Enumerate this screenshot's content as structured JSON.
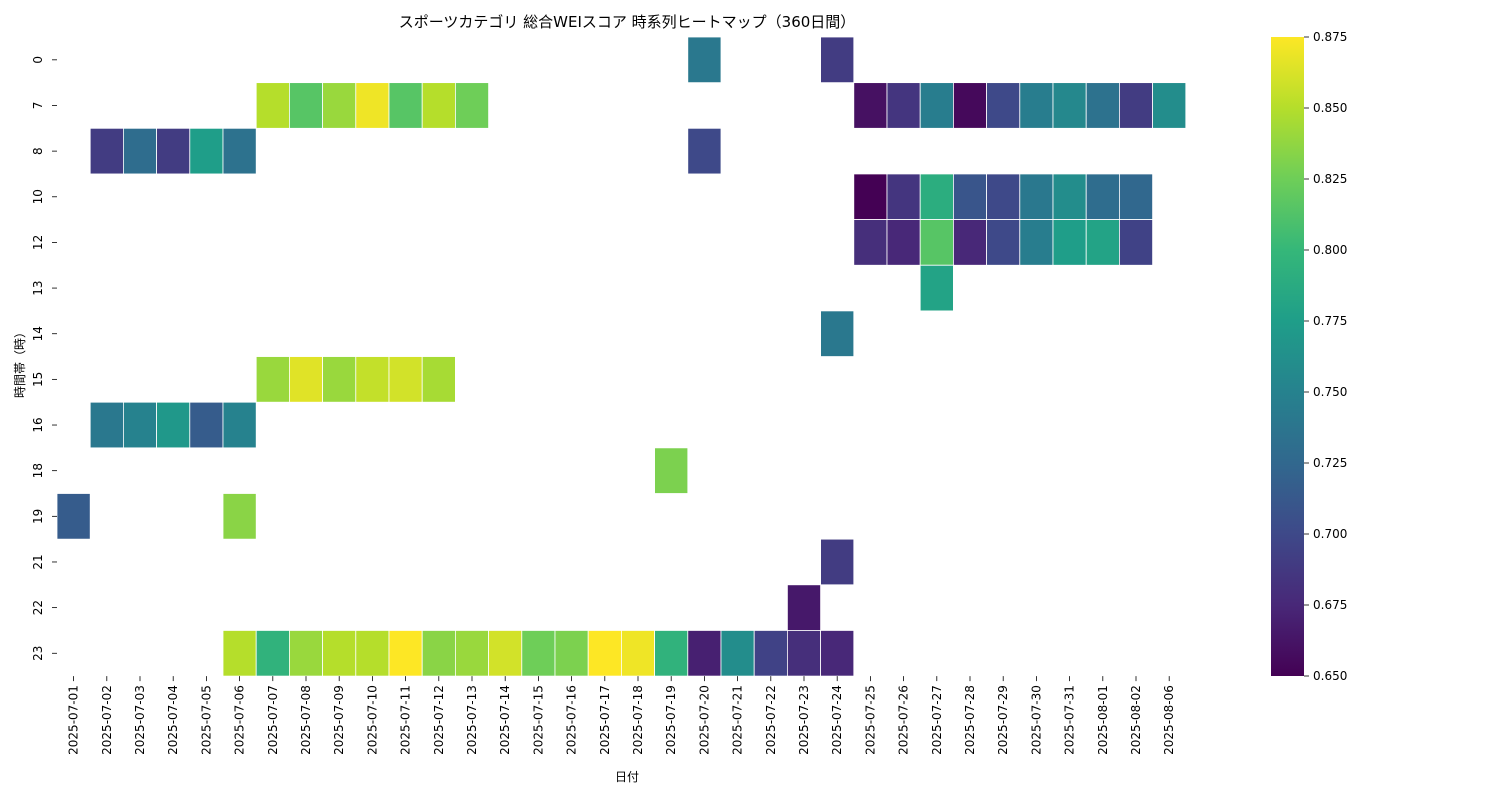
{
  "chart_data": {
    "type": "heatmap",
    "title": "スポーツカテゴリ 総合WEIスコア 時系列ヒートマップ（360日間）",
    "xlabel": "日付",
    "ylabel": "時間帯（時）",
    "x_categories": [
      "2025-07-01",
      "2025-07-02",
      "2025-07-03",
      "2025-07-04",
      "2025-07-05",
      "2025-07-06",
      "2025-07-07",
      "2025-07-08",
      "2025-07-09",
      "2025-07-10",
      "2025-07-11",
      "2025-07-12",
      "2025-07-13",
      "2025-07-14",
      "2025-07-15",
      "2025-07-16",
      "2025-07-17",
      "2025-07-18",
      "2025-07-19",
      "2025-07-20",
      "2025-07-21",
      "2025-07-22",
      "2025-07-23",
      "2025-07-24",
      "2025-07-25",
      "2025-07-26",
      "2025-07-27",
      "2025-07-28",
      "2025-07-29",
      "2025-07-30",
      "2025-07-31",
      "2025-08-01",
      "2025-08-02",
      "2025-08-06"
    ],
    "y_categories": [
      "0",
      "7",
      "8",
      "10",
      "12",
      "13",
      "14",
      "15",
      "16",
      "18",
      "19",
      "21",
      "22",
      "23"
    ],
    "colorbar": {
      "colormap": "viridis",
      "range": [
        0.65,
        0.875
      ],
      "ticks": [
        "0.650",
        "0.675",
        "0.700",
        "0.725",
        "0.750",
        "0.775",
        "0.800",
        "0.825",
        "0.850",
        "0.875"
      ]
    },
    "values": [
      [
        null,
        null,
        null,
        null,
        null,
        null,
        null,
        null,
        null,
        null,
        null,
        null,
        null,
        null,
        null,
        null,
        null,
        null,
        null,
        0.74,
        null,
        null,
        null,
        0.69,
        null,
        null,
        null,
        null,
        null,
        null,
        null,
        null,
        null,
        null
      ],
      [
        null,
        null,
        null,
        null,
        null,
        null,
        0.85,
        0.815,
        0.84,
        0.87,
        0.815,
        0.85,
        0.825,
        null,
        null,
        null,
        null,
        null,
        null,
        null,
        null,
        null,
        null,
        null,
        0.66,
        0.685,
        0.745,
        0.655,
        0.7,
        0.745,
        0.755,
        0.735,
        0.69,
        0.76
      ],
      [
        null,
        0.69,
        0.73,
        0.69,
        0.775,
        0.735,
        null,
        null,
        null,
        null,
        null,
        null,
        null,
        null,
        null,
        null,
        null,
        null,
        null,
        0.7,
        null,
        null,
        null,
        null,
        null,
        null,
        null,
        null,
        null,
        null,
        null,
        null,
        null,
        null
      ],
      [
        null,
        null,
        null,
        null,
        null,
        null,
        null,
        null,
        null,
        null,
        null,
        null,
        null,
        null,
        null,
        null,
        null,
        null,
        null,
        null,
        null,
        null,
        null,
        null,
        0.65,
        0.685,
        0.79,
        0.71,
        0.7,
        0.74,
        0.76,
        0.73,
        0.725,
        null
      ],
      [
        null,
        null,
        null,
        null,
        null,
        null,
        null,
        null,
        null,
        null,
        null,
        null,
        null,
        null,
        null,
        null,
        null,
        null,
        null,
        null,
        null,
        null,
        null,
        null,
        0.68,
        0.675,
        0.815,
        0.675,
        0.7,
        0.745,
        0.775,
        0.78,
        0.695,
        null
      ],
      [
        null,
        null,
        null,
        null,
        null,
        null,
        null,
        null,
        null,
        null,
        null,
        null,
        null,
        null,
        null,
        null,
        null,
        null,
        null,
        null,
        null,
        null,
        null,
        null,
        null,
        null,
        0.78,
        null,
        null,
        null,
        null,
        null,
        null,
        null
      ],
      [
        null,
        null,
        null,
        null,
        null,
        null,
        null,
        null,
        null,
        null,
        null,
        null,
        null,
        null,
        null,
        null,
        null,
        null,
        null,
        null,
        null,
        null,
        null,
        0.74,
        null,
        null,
        null,
        null,
        null,
        null,
        null,
        null,
        null,
        null
      ],
      [
        null,
        null,
        null,
        null,
        null,
        null,
        0.84,
        0.865,
        0.84,
        0.855,
        0.86,
        0.845,
        null,
        null,
        null,
        null,
        null,
        null,
        null,
        null,
        null,
        null,
        null,
        null,
        null,
        null,
        null,
        null,
        null,
        null,
        null,
        null,
        null,
        null
      ],
      [
        null,
        0.74,
        0.75,
        0.77,
        0.715,
        0.75,
        null,
        null,
        null,
        null,
        null,
        null,
        null,
        null,
        null,
        null,
        null,
        null,
        null,
        null,
        null,
        null,
        null,
        null,
        null,
        null,
        null,
        null,
        null,
        null,
        null,
        null,
        null,
        null
      ],
      [
        null,
        null,
        null,
        null,
        null,
        null,
        null,
        null,
        null,
        null,
        null,
        null,
        null,
        null,
        null,
        null,
        null,
        null,
        0.83,
        null,
        null,
        null,
        null,
        null,
        null,
        null,
        null,
        null,
        null,
        null,
        null,
        null,
        null,
        null
      ],
      [
        0.715,
        null,
        null,
        null,
        null,
        0.835,
        null,
        null,
        null,
        null,
        null,
        null,
        null,
        null,
        null,
        null,
        null,
        null,
        null,
        null,
        null,
        null,
        null,
        null,
        null,
        null,
        null,
        null,
        null,
        null,
        null,
        null,
        null,
        null
      ],
      [
        null,
        null,
        null,
        null,
        null,
        null,
        null,
        null,
        null,
        null,
        null,
        null,
        null,
        null,
        null,
        null,
        null,
        null,
        null,
        null,
        null,
        null,
        null,
        0.69,
        null,
        null,
        null,
        null,
        null,
        null,
        null,
        null,
        null,
        null
      ],
      [
        null,
        null,
        null,
        null,
        null,
        null,
        null,
        null,
        null,
        null,
        null,
        null,
        null,
        null,
        null,
        null,
        null,
        null,
        null,
        null,
        null,
        null,
        0.665,
        null,
        null,
        null,
        null,
        null,
        null,
        null,
        null,
        null,
        null,
        null
      ],
      [
        null,
        null,
        null,
        null,
        null,
        0.85,
        0.795,
        0.84,
        0.85,
        0.85,
        0.875,
        0.835,
        0.84,
        0.86,
        0.825,
        0.83,
        0.875,
        0.87,
        0.795,
        0.67,
        0.76,
        0.695,
        0.68,
        0.675,
        null,
        null,
        null,
        null,
        null,
        null,
        null,
        null,
        null,
        null
      ]
    ]
  }
}
